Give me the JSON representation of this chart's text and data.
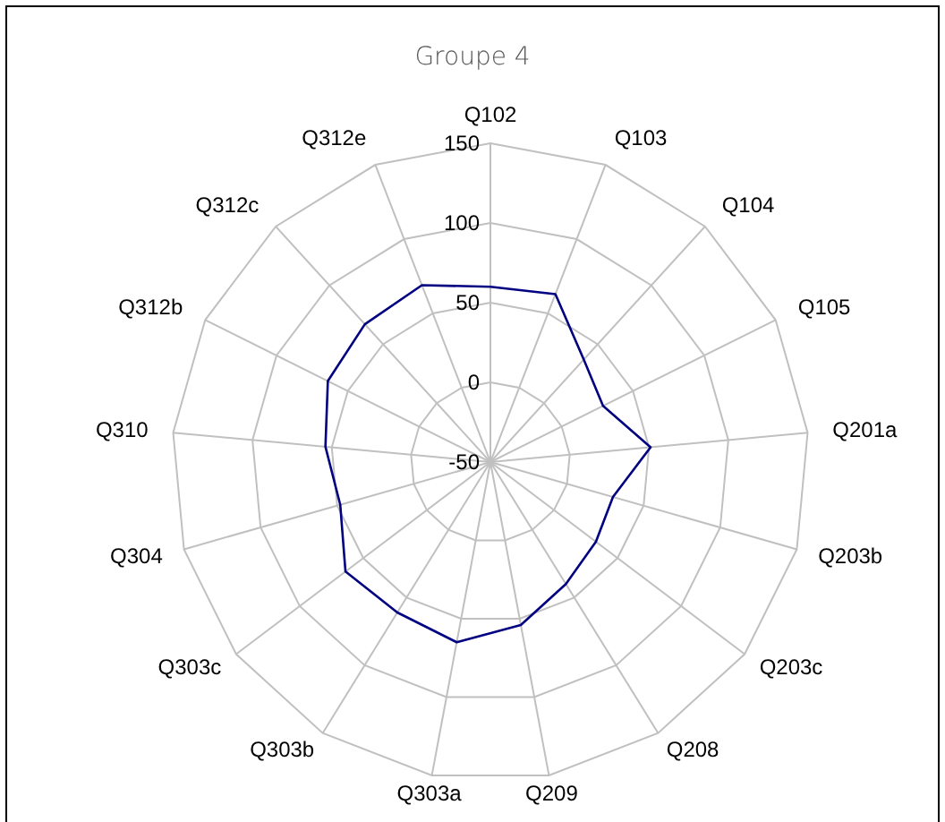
{
  "chart_data": {
    "type": "radar",
    "title": "Groupe 4",
    "categories": [
      "Q102",
      "Q103",
      "Q104",
      "Q105",
      "Q201a",
      "Q203b",
      "Q203c",
      "Q208",
      "Q209",
      "Q303a",
      "Q303b",
      "Q303c",
      "Q304",
      "Q310",
      "Q312b",
      "Q312c",
      "Q312e"
    ],
    "series": [
      {
        "color": "#000080",
        "values": [
          60,
          63,
          37,
          29,
          51,
          30,
          33,
          40,
          54,
          65,
          61,
          64,
          48,
          54,
          64,
          67,
          69
        ]
      }
    ],
    "ylim": [
      -50,
      150
    ],
    "yticks": [
      -50,
      0,
      50,
      100,
      150
    ],
    "grid": true,
    "marker": "none"
  }
}
